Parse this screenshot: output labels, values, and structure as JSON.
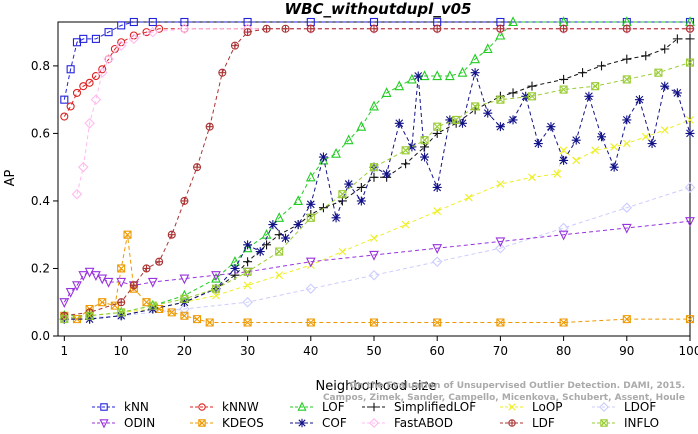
{
  "chart_data": {
    "type": "line",
    "title": "WBC_withoutdupl_v05",
    "xlabel": "Neighborhood size",
    "ylabel": "AP",
    "xlim": [
      0,
      100
    ],
    "ylim": [
      0,
      0.93
    ],
    "x_ticks": [
      1,
      10,
      20,
      30,
      40,
      50,
      60,
      70,
      80,
      90,
      100
    ],
    "y_ticks": [
      0.0,
      0.2,
      0.4,
      0.6,
      0.8
    ],
    "y_tick_labels": [
      "0.0",
      "0.2",
      "0.4",
      "0.6",
      "0.8"
    ],
    "legend_position": "bottom",
    "watermark": [
      "Campos, Zimek, Sander, Campello, Micenkova, Schubert, Assent, Houle",
      "On the Evaluation of Unsupervised Outlier Detection. DAMI, 2015."
    ],
    "series": [
      {
        "name": "kNN",
        "color": "#2222dd",
        "dash": "4,3",
        "marker": "square",
        "points": [
          [
            1,
            0.7
          ],
          [
            2,
            0.79
          ],
          [
            3,
            0.87
          ],
          [
            4,
            0.88
          ],
          [
            6,
            0.88
          ],
          [
            8,
            0.9
          ],
          [
            10,
            0.92
          ],
          [
            12,
            0.93
          ],
          [
            15,
            0.93
          ],
          [
            20,
            0.93
          ],
          [
            30,
            0.93
          ],
          [
            40,
            0.93
          ],
          [
            50,
            0.93
          ],
          [
            60,
            0.93
          ],
          [
            70,
            0.93
          ],
          [
            80,
            0.93
          ],
          [
            90,
            0.93
          ],
          [
            100,
            0.93
          ]
        ]
      },
      {
        "name": "kNNW",
        "color": "#dd2222",
        "dash": "4,3",
        "marker": "circle",
        "points": [
          [
            1,
            0.65
          ],
          [
            2,
            0.68
          ],
          [
            3,
            0.72
          ],
          [
            4,
            0.74
          ],
          [
            5,
            0.75
          ],
          [
            6,
            0.77
          ],
          [
            7,
            0.79
          ],
          [
            8,
            0.82
          ],
          [
            9,
            0.85
          ],
          [
            10,
            0.87
          ],
          [
            12,
            0.89
          ],
          [
            14,
            0.9
          ],
          [
            16,
            0.91
          ],
          [
            20,
            0.91
          ],
          [
            30,
            0.91
          ],
          [
            40,
            0.91
          ],
          [
            50,
            0.91
          ],
          [
            60,
            0.91
          ],
          [
            70,
            0.91
          ],
          [
            80,
            0.91
          ],
          [
            90,
            0.91
          ],
          [
            100,
            0.91
          ]
        ]
      },
      {
        "name": "LOF",
        "color": "#22cc22",
        "dash": "4,3",
        "marker": "triangle-up",
        "points": [
          [
            1,
            0.06
          ],
          [
            5,
            0.06
          ],
          [
            10,
            0.07
          ],
          [
            15,
            0.09
          ],
          [
            20,
            0.12
          ],
          [
            25,
            0.17
          ],
          [
            28,
            0.22
          ],
          [
            30,
            0.26
          ],
          [
            33,
            0.3
          ],
          [
            35,
            0.35
          ],
          [
            38,
            0.4
          ],
          [
            40,
            0.47
          ],
          [
            42,
            0.52
          ],
          [
            44,
            0.54
          ],
          [
            46,
            0.58
          ],
          [
            48,
            0.62
          ],
          [
            50,
            0.68
          ],
          [
            52,
            0.72
          ],
          [
            54,
            0.74
          ],
          [
            56,
            0.76
          ],
          [
            58,
            0.77
          ],
          [
            60,
            0.77
          ],
          [
            62,
            0.77
          ],
          [
            64,
            0.78
          ],
          [
            66,
            0.82
          ],
          [
            68,
            0.85
          ],
          [
            70,
            0.89
          ],
          [
            72,
            0.93
          ],
          [
            80,
            0.93
          ],
          [
            90,
            0.93
          ],
          [
            100,
            0.93
          ]
        ]
      },
      {
        "name": "SimplifiedLOF",
        "color": "#111111",
        "dash": "4,3",
        "marker": "plus",
        "points": [
          [
            1,
            0.05
          ],
          [
            5,
            0.05
          ],
          [
            10,
            0.06
          ],
          [
            15,
            0.08
          ],
          [
            20,
            0.1
          ],
          [
            25,
            0.14
          ],
          [
            28,
            0.18
          ],
          [
            30,
            0.22
          ],
          [
            33,
            0.27
          ],
          [
            35,
            0.3
          ],
          [
            38,
            0.33
          ],
          [
            40,
            0.36
          ],
          [
            42,
            0.38
          ],
          [
            45,
            0.4
          ],
          [
            48,
            0.44
          ],
          [
            50,
            0.47
          ],
          [
            52,
            0.47
          ],
          [
            55,
            0.51
          ],
          [
            58,
            0.56
          ],
          [
            60,
            0.6
          ],
          [
            63,
            0.63
          ],
          [
            66,
            0.67
          ],
          [
            70,
            0.71
          ],
          [
            72,
            0.72
          ],
          [
            75,
            0.74
          ],
          [
            80,
            0.76
          ],
          [
            83,
            0.78
          ],
          [
            86,
            0.8
          ],
          [
            90,
            0.82
          ],
          [
            93,
            0.83
          ],
          [
            96,
            0.85
          ],
          [
            98,
            0.88
          ],
          [
            100,
            0.88
          ]
        ]
      },
      {
        "name": "LoOP",
        "color": "#eeee22",
        "dash": "4,3",
        "marker": "x",
        "points": [
          [
            1,
            0.05
          ],
          [
            5,
            0.06
          ],
          [
            10,
            0.07
          ],
          [
            15,
            0.08
          ],
          [
            20,
            0.1
          ],
          [
            25,
            0.12
          ],
          [
            30,
            0.15
          ],
          [
            35,
            0.18
          ],
          [
            40,
            0.21
          ],
          [
            45,
            0.25
          ],
          [
            50,
            0.29
          ],
          [
            55,
            0.33
          ],
          [
            60,
            0.37
          ],
          [
            65,
            0.41
          ],
          [
            70,
            0.45
          ],
          [
            75,
            0.47
          ],
          [
            79,
            0.48
          ],
          [
            80,
            0.55
          ],
          [
            82,
            0.52
          ],
          [
            85,
            0.55
          ],
          [
            88,
            0.56
          ],
          [
            90,
            0.57
          ],
          [
            93,
            0.59
          ],
          [
            96,
            0.61
          ],
          [
            100,
            0.64
          ]
        ]
      },
      {
        "name": "LDOF",
        "color": "#ccccff",
        "dash": "4,3",
        "marker": "diamond",
        "points": [
          [
            1,
            0.05
          ],
          [
            10,
            0.06
          ],
          [
            20,
            0.08
          ],
          [
            30,
            0.1
          ],
          [
            40,
            0.14
          ],
          [
            50,
            0.18
          ],
          [
            60,
            0.22
          ],
          [
            70,
            0.26
          ],
          [
            80,
            0.32
          ],
          [
            90,
            0.38
          ],
          [
            100,
            0.44
          ]
        ]
      },
      {
        "name": "ODIN",
        "color": "#9933dd",
        "dash": "4,3",
        "marker": "triangle-down",
        "points": [
          [
            1,
            0.1
          ],
          [
            2,
            0.13
          ],
          [
            3,
            0.15
          ],
          [
            4,
            0.18
          ],
          [
            5,
            0.19
          ],
          [
            6,
            0.18
          ],
          [
            7,
            0.17
          ],
          [
            8,
            0.16
          ],
          [
            10,
            0.16
          ],
          [
            12,
            0.15
          ],
          [
            15,
            0.16
          ],
          [
            20,
            0.17
          ],
          [
            25,
            0.18
          ],
          [
            30,
            0.19
          ],
          [
            40,
            0.22
          ],
          [
            50,
            0.24
          ],
          [
            60,
            0.26
          ],
          [
            70,
            0.28
          ],
          [
            80,
            0.3
          ],
          [
            90,
            0.32
          ],
          [
            100,
            0.34
          ]
        ]
      },
      {
        "name": "KDEOS",
        "color": "#ee9900",
        "dash": "4,3",
        "marker": "square-x",
        "points": [
          [
            1,
            0.06
          ],
          [
            3,
            0.05
          ],
          [
            5,
            0.08
          ],
          [
            7,
            0.1
          ],
          [
            9,
            0.09
          ],
          [
            10,
            0.2
          ],
          [
            11,
            0.3
          ],
          [
            12,
            0.14
          ],
          [
            14,
            0.1
          ],
          [
            16,
            0.08
          ],
          [
            18,
            0.07
          ],
          [
            20,
            0.06
          ],
          [
            22,
            0.05
          ],
          [
            24,
            0.04
          ],
          [
            30,
            0.04
          ],
          [
            40,
            0.04
          ],
          [
            50,
            0.04
          ],
          [
            60,
            0.04
          ],
          [
            70,
            0.04
          ],
          [
            80,
            0.04
          ],
          [
            90,
            0.05
          ],
          [
            100,
            0.05
          ]
        ]
      },
      {
        "name": "COF",
        "color": "#111188",
        "dash": "4,3",
        "marker": "asterisk",
        "points": [
          [
            1,
            0.05
          ],
          [
            5,
            0.05
          ],
          [
            10,
            0.06
          ],
          [
            15,
            0.08
          ],
          [
            20,
            0.1
          ],
          [
            25,
            0.14
          ],
          [
            28,
            0.2
          ],
          [
            30,
            0.27
          ],
          [
            32,
            0.25
          ],
          [
            34,
            0.33
          ],
          [
            36,
            0.29
          ],
          [
            38,
            0.33
          ],
          [
            40,
            0.39
          ],
          [
            42,
            0.53
          ],
          [
            44,
            0.35
          ],
          [
            46,
            0.45
          ],
          [
            48,
            0.4
          ],
          [
            50,
            0.5
          ],
          [
            52,
            0.48
          ],
          [
            54,
            0.63
          ],
          [
            56,
            0.56
          ],
          [
            57,
            0.77
          ],
          [
            58,
            0.53
          ],
          [
            60,
            0.44
          ],
          [
            62,
            0.64
          ],
          [
            64,
            0.63
          ],
          [
            66,
            0.78
          ],
          [
            68,
            0.66
          ],
          [
            70,
            0.62
          ],
          [
            72,
            0.64
          ],
          [
            74,
            0.71
          ],
          [
            76,
            0.57
          ],
          [
            78,
            0.62
          ],
          [
            80,
            0.52
          ],
          [
            82,
            0.58
          ],
          [
            84,
            0.71
          ],
          [
            86,
            0.59
          ],
          [
            88,
            0.5
          ],
          [
            90,
            0.64
          ],
          [
            92,
            0.7
          ],
          [
            94,
            0.57
          ],
          [
            96,
            0.74
          ],
          [
            98,
            0.72
          ],
          [
            100,
            0.6
          ]
        ]
      },
      {
        "name": "FastABOD",
        "color": "#ffbbee",
        "dash": "4,3",
        "marker": "diamond",
        "points": [
          [
            3,
            0.42
          ],
          [
            4,
            0.5
          ],
          [
            5,
            0.63
          ],
          [
            6,
            0.7
          ],
          [
            7,
            0.78
          ],
          [
            8,
            0.82
          ],
          [
            10,
            0.86
          ],
          [
            12,
            0.88
          ],
          [
            15,
            0.9
          ],
          [
            20,
            0.91
          ],
          [
            30,
            0.91
          ],
          [
            40,
            0.91
          ],
          [
            50,
            0.91
          ],
          [
            60,
            0.91
          ],
          [
            70,
            0.91
          ],
          [
            80,
            0.91
          ],
          [
            90,
            0.91
          ],
          [
            100,
            0.91
          ]
        ]
      },
      {
        "name": "LDF",
        "color": "#aa3333",
        "dash": "4,3",
        "marker": "circle-plus",
        "points": [
          [
            1,
            0.06
          ],
          [
            5,
            0.07
          ],
          [
            10,
            0.1
          ],
          [
            12,
            0.15
          ],
          [
            14,
            0.2
          ],
          [
            16,
            0.22
          ],
          [
            18,
            0.3
          ],
          [
            20,
            0.4
          ],
          [
            22,
            0.5
          ],
          [
            24,
            0.62
          ],
          [
            26,
            0.78
          ],
          [
            28,
            0.86
          ],
          [
            30,
            0.9
          ],
          [
            33,
            0.91
          ],
          [
            36,
            0.91
          ],
          [
            40,
            0.91
          ],
          [
            50,
            0.91
          ],
          [
            60,
            0.91
          ],
          [
            70,
            0.91
          ],
          [
            80,
            0.91
          ],
          [
            90,
            0.91
          ],
          [
            100,
            0.91
          ]
        ]
      },
      {
        "name": "INFLO",
        "color": "#99cc33",
        "dash": "4,3",
        "marker": "square-x",
        "points": [
          [
            1,
            0.05
          ],
          [
            5,
            0.06
          ],
          [
            10,
            0.07
          ],
          [
            15,
            0.09
          ],
          [
            20,
            0.11
          ],
          [
            25,
            0.14
          ],
          [
            30,
            0.19
          ],
          [
            35,
            0.25
          ],
          [
            40,
            0.35
          ],
          [
            45,
            0.42
          ],
          [
            50,
            0.5
          ],
          [
            55,
            0.55
          ],
          [
            58,
            0.58
          ],
          [
            60,
            0.62
          ],
          [
            63,
            0.64
          ],
          [
            66,
            0.68
          ],
          [
            70,
            0.7
          ],
          [
            75,
            0.71
          ],
          [
            80,
            0.73
          ],
          [
            85,
            0.74
          ],
          [
            90,
            0.76
          ],
          [
            95,
            0.78
          ],
          [
            100,
            0.81
          ]
        ]
      }
    ]
  }
}
